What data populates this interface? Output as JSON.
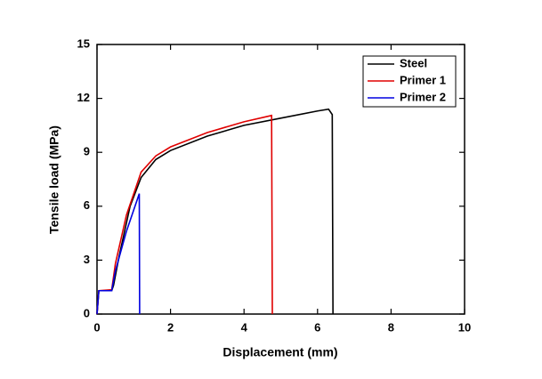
{
  "chart_data": {
    "type": "line",
    "xlabel": "Displacement (mm)",
    "ylabel": "Tensile load (MPa)",
    "xlim": [
      0,
      10
    ],
    "xticks": [
      0,
      2,
      4,
      6,
      8,
      10
    ],
    "ylim": [
      0,
      15
    ],
    "yticks": [
      0,
      3,
      6,
      9,
      12,
      15
    ],
    "legend": "upper right",
    "series": [
      {
        "name": "Steel",
        "color": "#000000",
        "x": [
          0,
          0.05,
          0.4,
          0.45,
          0.6,
          0.9,
          1.2,
          1.6,
          2,
          3,
          4,
          5,
          6,
          6.3,
          6.4,
          6.42
        ],
        "values": [
          0,
          1.3,
          1.3,
          1.6,
          3.2,
          6.0,
          7.6,
          8.6,
          9.1,
          9.9,
          10.5,
          10.9,
          11.3,
          11.4,
          11.1,
          0
        ]
      },
      {
        "name": "Primer 1",
        "color": "#e00000",
        "x": [
          0,
          0.05,
          0.4,
          0.5,
          0.8,
          1.2,
          1.6,
          2,
          3,
          4,
          4.75,
          4.77
        ],
        "values": [
          0,
          1.3,
          1.35,
          2.8,
          5.5,
          7.9,
          8.8,
          9.3,
          10.1,
          10.7,
          11.05,
          0
        ]
      },
      {
        "name": "Primer 2",
        "color": "#0000e0",
        "x": [
          0,
          0.05,
          0.4,
          0.5,
          0.8,
          1.1,
          1.15,
          1.16
        ],
        "values": [
          0,
          1.3,
          1.3,
          2.4,
          4.6,
          6.4,
          6.7,
          0
        ]
      }
    ]
  }
}
